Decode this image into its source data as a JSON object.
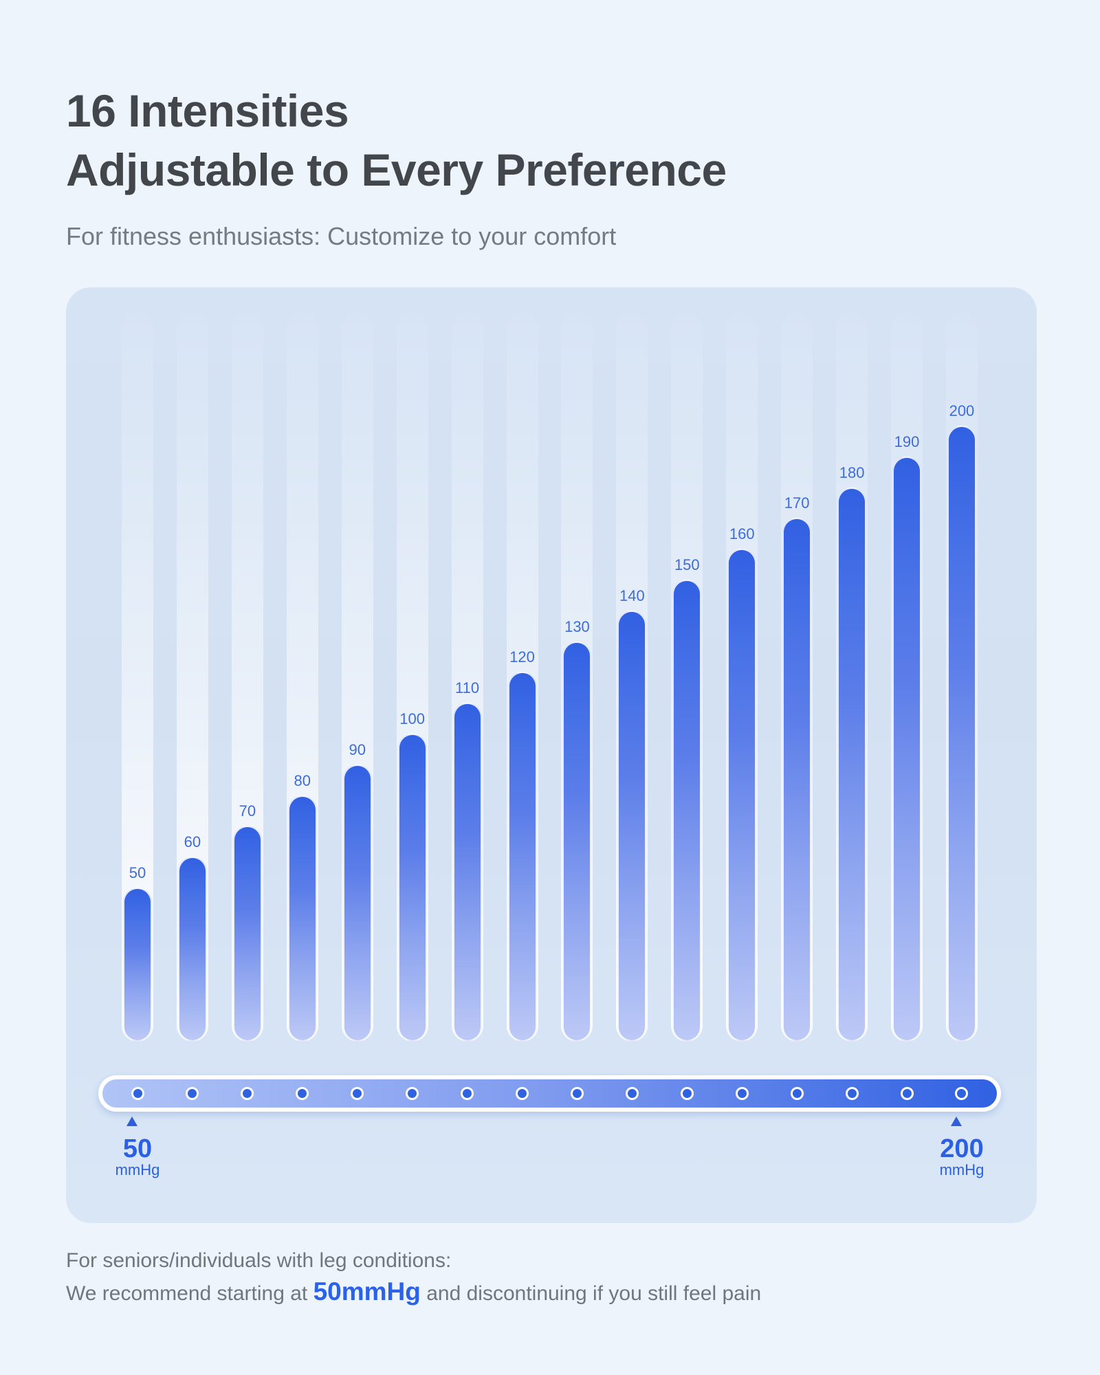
{
  "header": {
    "title_line1": "16 Intensities",
    "title_line2": "Adjustable to Every Preference",
    "subtitle": "For fitness enthusiasts: Customize to your comfort"
  },
  "chart_data": {
    "type": "bar",
    "title": "16 Intensities Adjustable to Every Preference",
    "categories": [
      "50",
      "60",
      "70",
      "80",
      "90",
      "100",
      "110",
      "120",
      "130",
      "140",
      "150",
      "160",
      "170",
      "180",
      "190",
      "200"
    ],
    "values": [
      50,
      60,
      70,
      80,
      90,
      100,
      110,
      120,
      130,
      140,
      150,
      160,
      170,
      180,
      190,
      200
    ],
    "unit": "mmHg",
    "xlabel": "",
    "ylabel": "",
    "ylim": [
      0,
      200
    ],
    "grid": false,
    "legend": false,
    "bar_color_top": "#3160e2",
    "bar_color_bottom": "#bdc9f6",
    "label_color": "#3e6cd8"
  },
  "slider": {
    "steps": 16,
    "min_label": "50",
    "min_unit": "mmHg",
    "max_label": "200",
    "max_unit": "mmHg",
    "dot_color": "#2f62e0",
    "track_gradient_left": "#b0c4f6",
    "track_gradient_right": "#3061e2"
  },
  "footer": {
    "line1": "For seniors/individuals with leg conditions:",
    "line2_prefix": "We recommend starting at ",
    "line2_highlight": "50mmHg",
    "line2_suffix": " and discontinuing if you still feel pain"
  },
  "colors": {
    "page_background": "#edf4fc",
    "card_background": "#d5e3f5",
    "title_text": "#43464b",
    "subtitle_text": "#757b83",
    "accent_blue": "#2a63ea"
  }
}
